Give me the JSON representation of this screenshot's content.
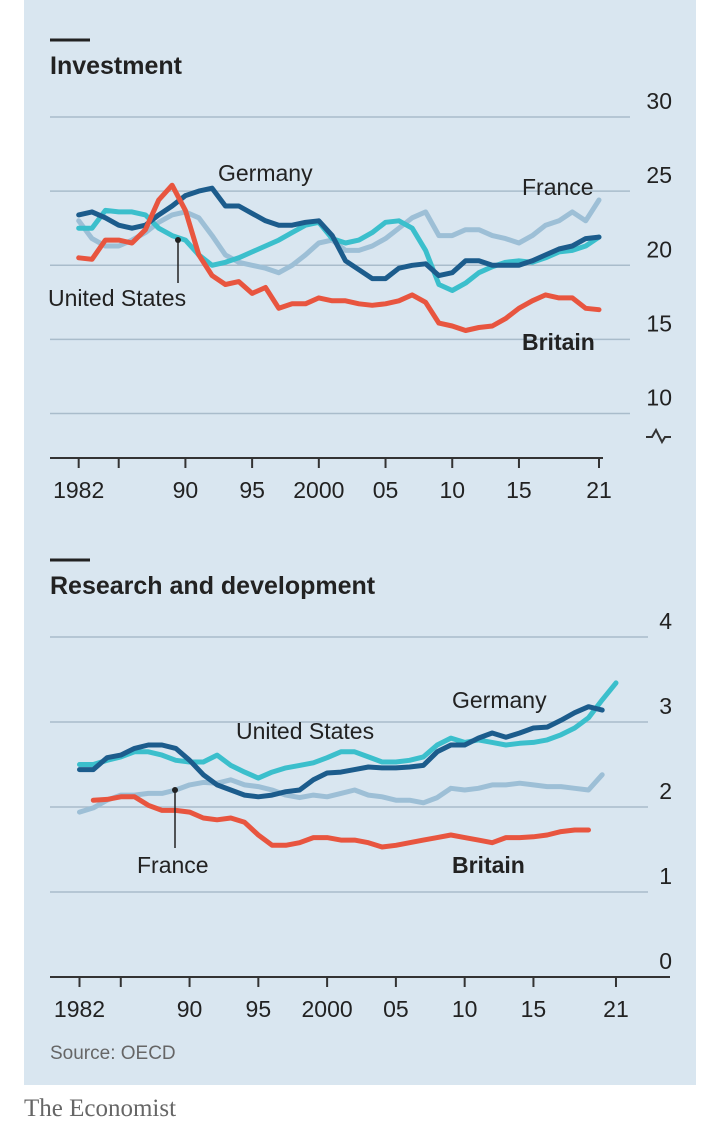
{
  "chart_data": [
    {
      "type": "line",
      "title": "Investment",
      "x": [
        1982,
        1983,
        1984,
        1985,
        1986,
        1987,
        1988,
        1989,
        1990,
        1991,
        1992,
        1993,
        1994,
        1995,
        1996,
        1997,
        1998,
        1999,
        2000,
        2001,
        2002,
        2003,
        2004,
        2005,
        2006,
        2007,
        2008,
        2009,
        2010,
        2011,
        2012,
        2013,
        2014,
        2015,
        2016,
        2017,
        2018,
        2019,
        2020,
        2021
      ],
      "series": [
        {
          "name": "France",
          "color": "#9dbfd6",
          "values": [
            23.0,
            21.8,
            21.3,
            21.3,
            21.7,
            22.2,
            22.9,
            23.4,
            23.6,
            23.2,
            22.0,
            20.7,
            20.2,
            20.0,
            19.8,
            19.5,
            20.0,
            20.7,
            21.5,
            21.7,
            21.0,
            21.0,
            21.3,
            21.8,
            22.5,
            23.2,
            23.6,
            22.0,
            22.0,
            22.4,
            22.4,
            22.0,
            21.8,
            21.5,
            22.0,
            22.7,
            23.0,
            23.6,
            23.0,
            24.4
          ]
        },
        {
          "name": "United States",
          "color": "#3bbfcc",
          "values": [
            22.5,
            22.5,
            23.7,
            23.6,
            23.6,
            23.4,
            22.5,
            22.0,
            21.7,
            20.7,
            20.0,
            20.2,
            20.5,
            20.9,
            21.3,
            21.7,
            22.2,
            22.7,
            22.9,
            21.8,
            21.5,
            21.7,
            22.2,
            22.9,
            23.0,
            22.5,
            21.0,
            18.7,
            18.3,
            18.8,
            19.5,
            19.9,
            20.2,
            20.3,
            20.2,
            20.5,
            20.9,
            21.0,
            21.3,
            21.9
          ]
        },
        {
          "name": "Germany",
          "color": "#1c5c8c",
          "values": [
            23.4,
            23.6,
            23.2,
            22.7,
            22.5,
            22.7,
            23.4,
            24.0,
            24.7,
            25.0,
            25.2,
            24.0,
            24.0,
            23.5,
            23.0,
            22.7,
            22.7,
            22.9,
            23.0,
            22.0,
            20.3,
            19.7,
            19.1,
            19.1,
            19.8,
            20.0,
            20.1,
            19.3,
            19.5,
            20.3,
            20.3,
            20.0,
            20.0,
            20.0,
            20.3,
            20.7,
            21.1,
            21.3,
            21.8,
            21.9
          ]
        },
        {
          "name": "Britain",
          "color": "#e8553f",
          "values": [
            20.5,
            20.4,
            21.7,
            21.7,
            21.5,
            22.4,
            24.4,
            25.4,
            23.7,
            20.7,
            19.3,
            18.7,
            18.9,
            18.1,
            18.5,
            17.1,
            17.4,
            17.4,
            17.8,
            17.6,
            17.6,
            17.4,
            17.3,
            17.4,
            17.6,
            18.0,
            17.5,
            16.1,
            15.9,
            15.6,
            15.8,
            15.9,
            16.4,
            17.1,
            17.6,
            18.0,
            17.8,
            17.8,
            17.1,
            17.0
          ]
        }
      ],
      "xlim": [
        1980,
        2021.3
      ],
      "xticks": [
        1982,
        {
          "value": 1985,
          "label": null
        },
        {
          "value": 1990,
          "label": "90"
        },
        {
          "value": 1995,
          "label": "95"
        },
        2000,
        {
          "value": 2005,
          "label": "05"
        },
        {
          "value": 2010,
          "label": "10"
        },
        {
          "value": 2015,
          "label": "15"
        },
        {
          "value": 2021,
          "label": "21"
        }
      ],
      "ylim": [
        7,
        30
      ],
      "yticks": [
        10,
        15,
        20,
        25,
        30
      ],
      "grid": true,
      "axis_break": true
    },
    {
      "type": "line",
      "title": "Research and development",
      "x": [
        1982,
        1983,
        1984,
        1985,
        1986,
        1987,
        1988,
        1989,
        1990,
        1991,
        1992,
        1993,
        1994,
        1995,
        1996,
        1997,
        1998,
        1999,
        2000,
        2001,
        2002,
        2003,
        2004,
        2005,
        2006,
        2007,
        2008,
        2009,
        2010,
        2011,
        2012,
        2013,
        2014,
        2015,
        2016,
        2017,
        2018,
        2019,
        2020,
        2021
      ],
      "series": [
        {
          "name": "France",
          "color": "#9dbfd6",
          "values": [
            1.94,
            1.99,
            2.08,
            2.14,
            2.14,
            2.16,
            2.16,
            2.2,
            2.26,
            2.29,
            2.28,
            2.32,
            2.26,
            2.24,
            2.2,
            2.14,
            2.11,
            2.14,
            2.12,
            2.16,
            2.2,
            2.14,
            2.12,
            2.08,
            2.08,
            2.05,
            2.11,
            2.22,
            2.2,
            2.22,
            2.26,
            2.26,
            2.28,
            2.26,
            2.24,
            2.24,
            2.22,
            2.2,
            2.38,
            null
          ]
        },
        {
          "name": "United States",
          "color": "#3bbfcc",
          "values": [
            2.5,
            2.5,
            2.55,
            2.59,
            2.65,
            2.65,
            2.61,
            2.55,
            2.53,
            2.53,
            2.61,
            2.49,
            2.41,
            2.34,
            2.41,
            2.46,
            2.49,
            2.52,
            2.58,
            2.65,
            2.65,
            2.59,
            2.53,
            2.53,
            2.55,
            2.59,
            2.73,
            2.81,
            2.76,
            2.79,
            2.76,
            2.73,
            2.75,
            2.76,
            2.79,
            2.85,
            2.93,
            3.05,
            3.26,
            3.46
          ]
        },
        {
          "name": "Germany",
          "color": "#1c5c8c",
          "values": [
            2.44,
            2.44,
            2.58,
            2.61,
            2.69,
            2.73,
            2.73,
            2.69,
            2.55,
            2.38,
            2.26,
            2.2,
            2.14,
            2.12,
            2.14,
            2.18,
            2.2,
            2.32,
            2.4,
            2.41,
            2.44,
            2.47,
            2.46,
            2.46,
            2.47,
            2.49,
            2.65,
            2.73,
            2.73,
            2.81,
            2.87,
            2.82,
            2.87,
            2.93,
            2.94,
            3.02,
            3.11,
            3.18,
            3.14,
            null
          ]
        },
        {
          "name": "Britain",
          "color": "#e8553f",
          "values": [
            null,
            2.08,
            2.09,
            2.12,
            2.12,
            2.02,
            1.96,
            1.96,
            1.94,
            1.87,
            1.85,
            1.87,
            1.82,
            1.67,
            1.55,
            1.55,
            1.58,
            1.64,
            1.64,
            1.61,
            1.61,
            1.58,
            1.53,
            1.55,
            1.58,
            1.61,
            1.64,
            1.67,
            1.64,
            1.61,
            1.58,
            1.64,
            1.64,
            1.65,
            1.67,
            1.71,
            1.73,
            1.73,
            null,
            null
          ]
        }
      ],
      "xlim": [
        1980,
        2025
      ],
      "xticks": [
        1982,
        {
          "value": 1985,
          "label": null
        },
        {
          "value": 1990,
          "label": "90"
        },
        {
          "value": 1995,
          "label": "95"
        },
        2000,
        {
          "value": 2005,
          "label": "05"
        },
        {
          "value": 2010,
          "label": "10"
        },
        {
          "value": 2015,
          "label": "15"
        },
        {
          "value": 2021,
          "label": "21"
        }
      ],
      "ylim": [
        0,
        4
      ],
      "yticks": [
        0,
        1,
        2,
        3,
        4
      ],
      "grid": true,
      "source": "Source: OECD"
    }
  ],
  "footer": "The Economist"
}
